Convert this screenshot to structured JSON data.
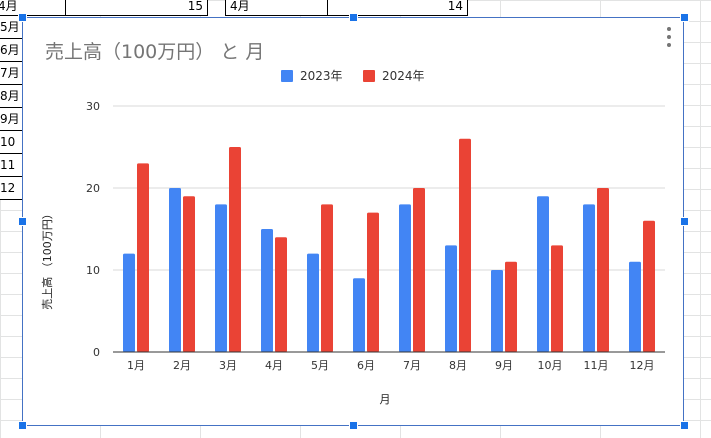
{
  "sheet": {
    "top_row": [
      {
        "text": "4月",
        "align": "left"
      },
      {
        "text": "15",
        "align": "right"
      },
      {
        "text": "4月",
        "align": "left"
      },
      {
        "text": "14",
        "align": "right"
      }
    ],
    "col_a": [
      "5月",
      "6月",
      "7月",
      "8月",
      "9月",
      "10月",
      "11月",
      "12月"
    ]
  },
  "chart_data": {
    "type": "bar",
    "title": "売上高（100万円） と 月",
    "xlabel": "月",
    "ylabel": "売上高 （100万円）",
    "categories": [
      "1月",
      "2月",
      "3月",
      "4月",
      "5月",
      "6月",
      "7月",
      "8月",
      "9月",
      "10月",
      "11月",
      "12月"
    ],
    "series": [
      {
        "name": "2023年",
        "color": "#4285f4",
        "values": [
          12,
          20,
          18,
          15,
          12,
          9,
          18,
          13,
          10,
          19,
          18,
          11
        ]
      },
      {
        "name": "2024年",
        "color": "#ea4335",
        "values": [
          23,
          19,
          25,
          14,
          18,
          17,
          20,
          26,
          11,
          13,
          20,
          16
        ]
      }
    ],
    "ylim": [
      0,
      30
    ],
    "yticks": [
      0,
      10,
      20,
      30
    ],
    "grid": true,
    "legend_position": "top-center"
  },
  "icons": {
    "more_menu": "vertical-dots-icon"
  }
}
